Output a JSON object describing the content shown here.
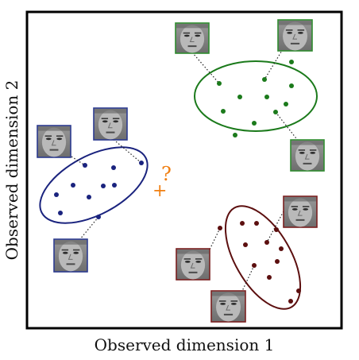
{
  "xlabel": "Observed dimension 1",
  "ylabel": "Observed dimension 2",
  "query": {
    "plus": "+",
    "question": "?",
    "color": "#f07f12"
  },
  "colors": {
    "blue": "#1a237e",
    "green": "#1b7a1b",
    "red": "#5c0f0f",
    "frame": "#000000",
    "face_blue_border": "#2b3a8f",
    "face_green_border": "#2e8b2e",
    "face_red_border": "#7a1f1f"
  },
  "clusters": [
    {
      "name": "blue",
      "icon": "face-thumbnail",
      "face_count": 3
    },
    {
      "name": "green",
      "icon": "face-thumbnail",
      "face_count": 3
    },
    {
      "name": "red",
      "icon": "face-thumbnail",
      "face_count": 3
    }
  ]
}
